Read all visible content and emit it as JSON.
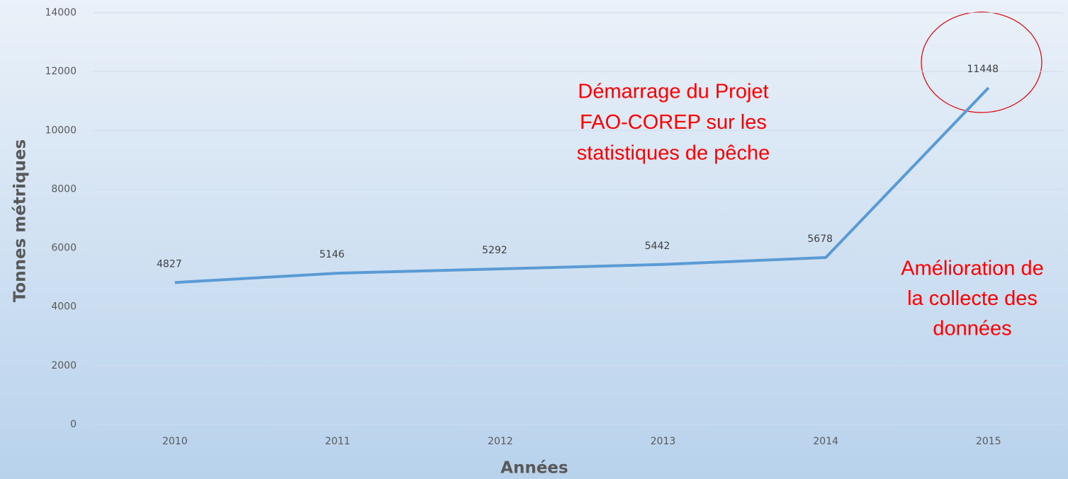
{
  "chart_data": {
    "type": "line",
    "categories": [
      "2010",
      "2011",
      "2012",
      "2013",
      "2014",
      "2015"
    ],
    "series": [
      {
        "color": "#5b9bd5",
        "values": [
          4827,
          5146,
          5292,
          5442,
          5678,
          11448
        ]
      }
    ],
    "ylim": [
      0,
      14000
    ],
    "yticks": [
      0,
      2000,
      4000,
      6000,
      8000,
      10000,
      12000,
      14000
    ],
    "grid": true,
    "y_label": "Tonnes métriques",
    "x_label": "Années",
    "annotations": [
      {
        "lines": [
          "Démarrage du Projet",
          "FAO-COREP sur les",
          "statistiques de pêche"
        ]
      },
      {
        "lines": [
          "Amélioration de",
          "la collecte des",
          "données"
        ]
      }
    ]
  }
}
